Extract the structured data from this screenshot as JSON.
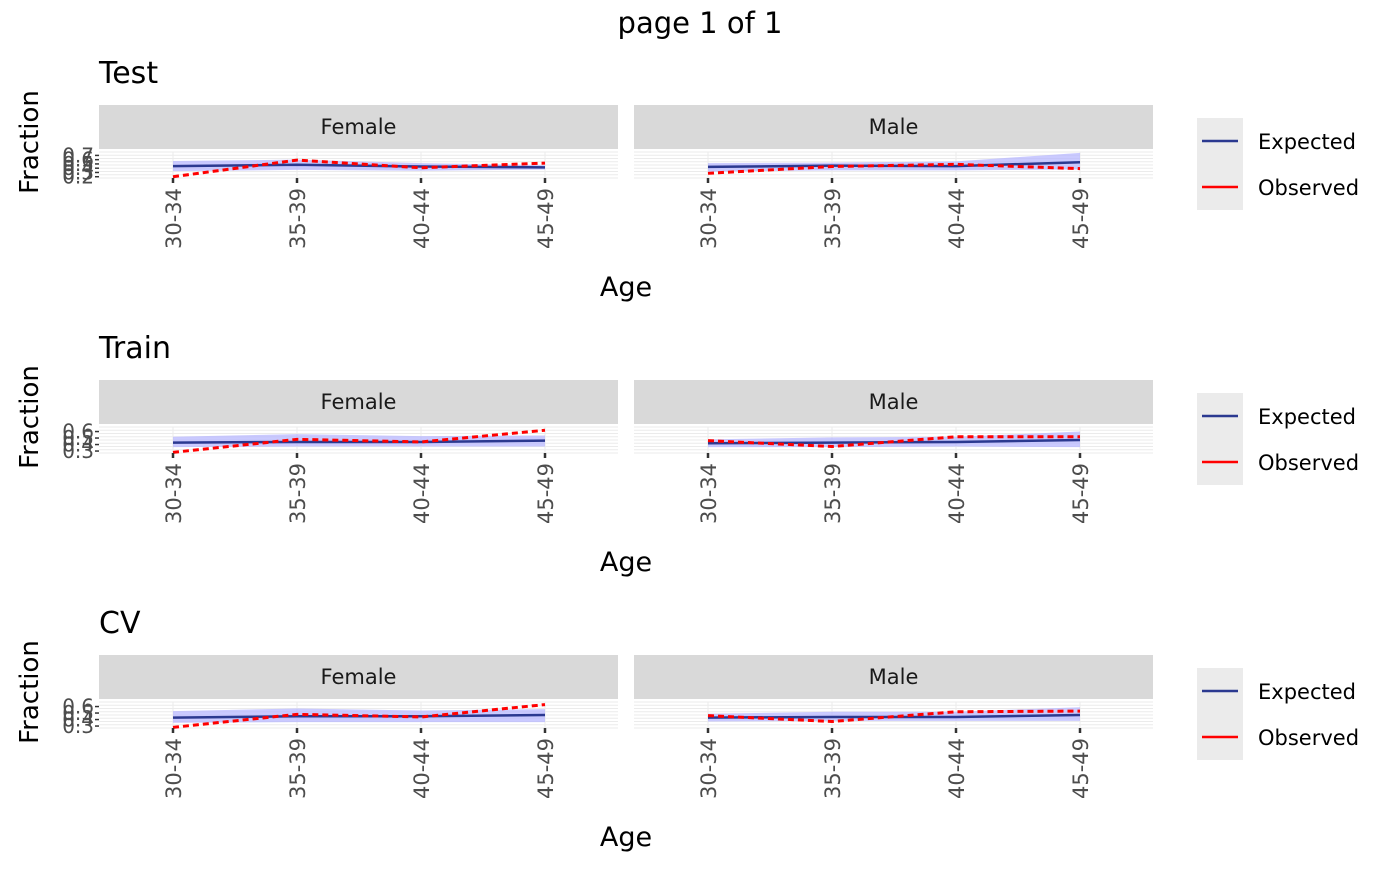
{
  "page_title": "page 1 of 1",
  "colors": {
    "expected": "#2b3990",
    "observed": "#ff0000",
    "ribbon": "#b3b3ff",
    "strip_bg": "#d9d9d9",
    "legend_bg": "#ebebeb",
    "grid": "#ebebeb",
    "tick_text": "#4d4d4d"
  },
  "legend": {
    "expected_label": "Expected",
    "observed_label": "Observed"
  },
  "chart_data": [
    {
      "type": "line",
      "title": "Test",
      "xlabel": "Age",
      "ylabel": "Fraction",
      "categories": [
        "30-34",
        "35-39",
        "40-44",
        "45-49"
      ],
      "ylim": [
        0.17,
        0.78
      ],
      "yticks": [
        "0.2",
        "0.3",
        "0.4",
        "0.5",
        "0.6",
        "0.7"
      ],
      "panels": [
        {
          "strip": "Female",
          "series": [
            {
              "name": "Expected",
              "values": [
                0.45,
                0.48,
                0.44,
                0.42
              ],
              "lower": [
                0.33,
                0.36,
                0.34,
                0.37
              ],
              "upper": [
                0.57,
                0.6,
                0.52,
                0.47
              ]
            },
            {
              "name": "Observed",
              "values": [
                0.2,
                0.59,
                0.41,
                0.52
              ]
            }
          ]
        },
        {
          "strip": "Male",
          "series": [
            {
              "name": "Expected",
              "values": [
                0.43,
                0.46,
                0.45,
                0.54
              ],
              "lower": [
                0.32,
                0.35,
                0.35,
                0.37
              ],
              "upper": [
                0.52,
                0.53,
                0.56,
                0.76
              ]
            },
            {
              "name": "Observed",
              "values": [
                0.28,
                0.44,
                0.49,
                0.39
              ]
            }
          ]
        }
      ]
    },
    {
      "type": "line",
      "title": "Train",
      "xlabel": "Age",
      "ylabel": "Fraction",
      "categories": [
        "30-34",
        "35-39",
        "40-44",
        "45-49"
      ],
      "ylim": [
        0.27,
        0.67
      ],
      "yticks": [
        "0.3",
        "0.4",
        "0.5",
        "0.6"
      ],
      "panels": [
        {
          "strip": "Female",
          "series": [
            {
              "name": "Expected",
              "values": [
                0.43,
                0.44,
                0.44,
                0.46
              ],
              "lower": [
                0.36,
                0.37,
                0.37,
                0.37
              ],
              "upper": [
                0.52,
                0.56,
                0.53,
                0.54
              ]
            },
            {
              "name": "Observed",
              "values": [
                0.28,
                0.48,
                0.44,
                0.62
              ]
            }
          ]
        },
        {
          "strip": "Male",
          "series": [
            {
              "name": "Expected",
              "values": [
                0.42,
                0.43,
                0.44,
                0.47
              ],
              "lower": [
                0.36,
                0.36,
                0.37,
                0.36
              ],
              "upper": [
                0.48,
                0.51,
                0.52,
                0.6
              ]
            },
            {
              "name": "Observed",
              "values": [
                0.46,
                0.37,
                0.52,
                0.52
              ]
            }
          ]
        }
      ]
    },
    {
      "type": "line",
      "title": "CV",
      "xlabel": "Age",
      "ylabel": "Fraction",
      "categories": [
        "30-34",
        "35-39",
        "40-44",
        "45-49"
      ],
      "ylim": [
        0.27,
        0.67
      ],
      "yticks": [
        "0.3",
        "0.4",
        "0.5",
        "0.6"
      ],
      "panels": [
        {
          "strip": "Female",
          "series": [
            {
              "name": "Expected",
              "values": [
                0.43,
                0.45,
                0.45,
                0.47
              ],
              "lower": [
                0.35,
                0.36,
                0.36,
                0.36
              ],
              "upper": [
                0.53,
                0.57,
                0.54,
                0.56
              ]
            },
            {
              "name": "Observed",
              "values": [
                0.28,
                0.48,
                0.44,
                0.63
              ]
            }
          ]
        },
        {
          "strip": "Male",
          "series": [
            {
              "name": "Expected",
              "values": [
                0.43,
                0.44,
                0.44,
                0.47
              ],
              "lower": [
                0.37,
                0.38,
                0.38,
                0.38
              ],
              "upper": [
                0.49,
                0.52,
                0.52,
                0.59
              ]
            },
            {
              "name": "Observed",
              "values": [
                0.46,
                0.37,
                0.52,
                0.53
              ]
            }
          ]
        }
      ]
    }
  ]
}
